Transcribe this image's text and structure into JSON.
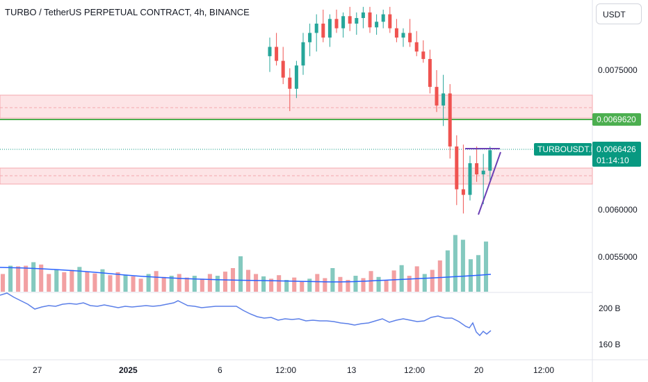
{
  "header": {
    "title": "TURBO / TetherUS PERPETUAL CONTRACT, 4h, BINANCE",
    "currency_button": "USDT"
  },
  "price_axis": {
    "labels": [
      "0.0075000",
      "0.0060000",
      "0.0055000"
    ]
  },
  "badges": {
    "level_price": "0.0069620",
    "symbol": "TURBOUSDT.P",
    "last_price": "0.0066426",
    "countdown": "01:14:10"
  },
  "indicator_axis": {
    "labels": [
      "200 B",
      "160 B"
    ]
  },
  "time_axis": {
    "labels": [
      "27",
      "2025",
      "6",
      "12:00",
      "13",
      "12:00",
      "20",
      "12:00"
    ]
  },
  "colors": {
    "up": "#26a69a",
    "down": "#ef5350",
    "up_volume": "#84c9bf",
    "down_volume": "#f2a0a2",
    "volume_ma": "#2962ff",
    "indicator_line": "#5b7fe8",
    "zone_fill": "#fde4e6",
    "zone_border": "#f4a7ad",
    "level_line": "#4caf50",
    "badge_green": "#4caf50",
    "badge_teal": "#089981",
    "trend_line": "#6a3fb4"
  },
  "chart_data": {
    "type": "candlestick",
    "title": "TURBO / TetherUS PERPETUAL CONTRACT, 4h, BINANCE",
    "price_axis_ticks": [
      0.0075,
      0.006,
      0.0055
    ],
    "horizontal_level": 0.006962,
    "last_price": 0.0066426,
    "zones": [
      {
        "top": 0.007252,
        "bottom": 0.006962,
        "midline": 0.007113
      },
      {
        "top": 0.006522,
        "bottom": 0.006251,
        "midline": 0.006378
      }
    ],
    "candles_recent": [
      {
        "o": 0.00765,
        "h": 0.00785,
        "l": 0.00748,
        "c": 0.00775
      },
      {
        "o": 0.00775,
        "h": 0.0079,
        "l": 0.00755,
        "c": 0.0076
      },
      {
        "o": 0.0076,
        "h": 0.00775,
        "l": 0.00735,
        "c": 0.00742
      },
      {
        "o": 0.00742,
        "h": 0.00752,
        "l": 0.00706,
        "c": 0.0073
      },
      {
        "o": 0.0073,
        "h": 0.0076,
        "l": 0.0072,
        "c": 0.00755
      },
      {
        "o": 0.00755,
        "h": 0.0079,
        "l": 0.00745,
        "c": 0.0078
      },
      {
        "o": 0.0078,
        "h": 0.008,
        "l": 0.00765,
        "c": 0.0079
      },
      {
        "o": 0.0079,
        "h": 0.0081,
        "l": 0.0077,
        "c": 0.008
      },
      {
        "o": 0.008,
        "h": 0.00815,
        "l": 0.0078,
        "c": 0.00785
      },
      {
        "o": 0.00785,
        "h": 0.0081,
        "l": 0.00775,
        "c": 0.00805
      },
      {
        "o": 0.00805,
        "h": 0.00815,
        "l": 0.0079,
        "c": 0.00795
      },
      {
        "o": 0.00795,
        "h": 0.00812,
        "l": 0.00785,
        "c": 0.00808
      },
      {
        "o": 0.00808,
        "h": 0.00818,
        "l": 0.00792,
        "c": 0.008
      },
      {
        "o": 0.008,
        "h": 0.00812,
        "l": 0.00788,
        "c": 0.00806
      },
      {
        "o": 0.00806,
        "h": 0.00818,
        "l": 0.00795,
        "c": 0.00812
      },
      {
        "o": 0.00812,
        "h": 0.00818,
        "l": 0.0079,
        "c": 0.00796
      },
      {
        "o": 0.00796,
        "h": 0.0081,
        "l": 0.00788,
        "c": 0.00802
      },
      {
        "o": 0.00802,
        "h": 0.00815,
        "l": 0.00795,
        "c": 0.0081
      },
      {
        "o": 0.0081,
        "h": 0.00818,
        "l": 0.0079,
        "c": 0.00795
      },
      {
        "o": 0.00795,
        "h": 0.00805,
        "l": 0.0078,
        "c": 0.00785
      },
      {
        "o": 0.00785,
        "h": 0.00795,
        "l": 0.00775,
        "c": 0.0079
      },
      {
        "o": 0.0079,
        "h": 0.00805,
        "l": 0.00775,
        "c": 0.0078
      },
      {
        "o": 0.0078,
        "h": 0.00792,
        "l": 0.00765,
        "c": 0.0077
      },
      {
        "o": 0.0077,
        "h": 0.00782,
        "l": 0.00758,
        "c": 0.00762
      },
      {
        "o": 0.00762,
        "h": 0.00772,
        "l": 0.00725,
        "c": 0.00732
      },
      {
        "o": 0.00732,
        "h": 0.0075,
        "l": 0.00705,
        "c": 0.00712
      },
      {
        "o": 0.00712,
        "h": 0.00745,
        "l": 0.0069,
        "c": 0.00725
      },
      {
        "o": 0.00725,
        "h": 0.00735,
        "l": 0.00655,
        "c": 0.00668
      },
      {
        "o": 0.00668,
        "h": 0.0068,
        "l": 0.00605,
        "c": 0.00622
      },
      {
        "o": 0.00622,
        "h": 0.0067,
        "l": 0.00596,
        "c": 0.00616
      },
      {
        "o": 0.00616,
        "h": 0.00658,
        "l": 0.0061,
        "c": 0.0065
      },
      {
        "o": 0.0065,
        "h": 0.00668,
        "l": 0.0063,
        "c": 0.00638
      },
      {
        "o": 0.00638,
        "h": 0.0066,
        "l": 0.00606,
        "c": 0.00642
      },
      {
        "o": 0.00642,
        "h": 0.00668,
        "l": 0.00632,
        "c": 0.00664
      }
    ],
    "volume": {
      "bars_visible": 64,
      "relative_heights": [
        0.3,
        0.44,
        0.43,
        0.44,
        0.5,
        0.46,
        0.3,
        0.38,
        0.33,
        0.37,
        0.42,
        0.34,
        0.31,
        0.38,
        0.28,
        0.33,
        0.29,
        0.26,
        0.22,
        0.3,
        0.35,
        0.25,
        0.27,
        0.3,
        0.24,
        0.27,
        0.22,
        0.3,
        0.27,
        0.34,
        0.4,
        0.6,
        0.37,
        0.3,
        0.26,
        0.22,
        0.28,
        0.2,
        0.24,
        0.18,
        0.22,
        0.3,
        0.23,
        0.4,
        0.25,
        0.2,
        0.27,
        0.23,
        0.35,
        0.25,
        0.19,
        0.36,
        0.45,
        0.27,
        0.43,
        0.3,
        0.37,
        0.53,
        0.7,
        0.96,
        0.88,
        0.55,
        0.62,
        0.85
      ]
    },
    "indicator": {
      "axis_ticks": [
        "200 B",
        "160 B"
      ],
      "shape": "declining from left, plateau in middle, sharp drop at the right edge"
    },
    "time_axis": [
      "27",
      "2025",
      "6",
      "12:00",
      "13",
      "12:00",
      "20",
      "12:00"
    ]
  }
}
